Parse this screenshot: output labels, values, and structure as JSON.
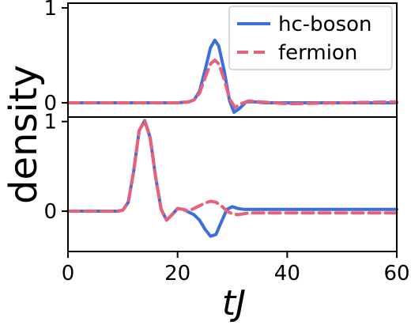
{
  "chart_data": {
    "type": "line",
    "xlabel": "tJ",
    "ylabel": "density",
    "xlim": [
      0,
      60
    ],
    "x_ticks": [
      0,
      20,
      40,
      60
    ],
    "grid": false,
    "legend": {
      "location": "top-right",
      "panel": "top"
    },
    "colors": {
      "hc-boson": "#3a6fdd",
      "fermion": "#e8607a"
    },
    "panels": [
      {
        "position": "top",
        "ylim": [
          -0.15,
          1.05
        ],
        "y_ticks": [
          0,
          1
        ],
        "series": [
          {
            "name": "hc-boson",
            "style": "solid",
            "x": [
              0,
              20,
              22,
              23,
              24,
              25,
              26,
              26.8,
              27.5,
              28.5,
              29.5,
              30.3,
              31.3,
              32.5,
              34,
              36,
              60
            ],
            "y": [
              0,
              0,
              0.01,
              0.03,
              0.12,
              0.34,
              0.58,
              0.66,
              0.6,
              0.34,
              0.02,
              -0.1,
              -0.06,
              0.01,
              0.01,
              0,
              0
            ]
          },
          {
            "name": "fermion",
            "style": "dashed",
            "x": [
              0,
              20,
              22,
              23,
              24,
              25,
              26,
              26.8,
              27.5,
              28.5,
              29.5,
              30.5,
              31.5,
              33,
              35,
              40,
              50,
              60
            ],
            "y": [
              0,
              0,
              0.01,
              0.03,
              0.1,
              0.26,
              0.41,
              0.45,
              0.41,
              0.25,
              0.04,
              -0.05,
              -0.01,
              0.02,
              0.01,
              -0.01,
              0,
              0.01
            ]
          }
        ]
      },
      {
        "position": "bottom",
        "ylim": [
          -0.45,
          1.05
        ],
        "y_ticks": [
          0,
          1
        ],
        "series": [
          {
            "name": "hc-boson",
            "style": "solid",
            "x": [
              0,
              9,
              10,
              11,
              12,
              13,
              14,
              15,
              16,
              17,
              18,
              19,
              20,
              21,
              22,
              23,
              24,
              25,
              26,
              27,
              28,
              29,
              30,
              31,
              32,
              60
            ],
            "y": [
              0,
              0,
              0.01,
              0.1,
              0.45,
              0.9,
              1.01,
              0.82,
              0.38,
              0.02,
              -0.1,
              -0.04,
              0.03,
              0.02,
              -0.01,
              -0.04,
              -0.1,
              -0.2,
              -0.28,
              -0.26,
              -0.12,
              0.02,
              0.05,
              0.03,
              0.02,
              0.02
            ]
          },
          {
            "name": "fermion",
            "style": "dashed",
            "x": [
              0,
              9,
              10,
              11,
              12,
              13,
              14,
              15,
              16,
              17,
              18,
              19,
              20,
              21,
              22,
              23,
              24,
              25,
              26,
              27,
              28,
              29,
              30,
              31,
              33,
              40,
              60
            ],
            "y": [
              0,
              0,
              0.01,
              0.1,
              0.45,
              0.9,
              1.01,
              0.82,
              0.38,
              0.02,
              -0.1,
              -0.04,
              0.03,
              0.02,
              0.0,
              0.03,
              0.06,
              0.09,
              0.11,
              0.1,
              0.06,
              0.0,
              -0.03,
              -0.04,
              -0.02,
              -0.02,
              -0.02
            ]
          }
        ]
      }
    ]
  }
}
